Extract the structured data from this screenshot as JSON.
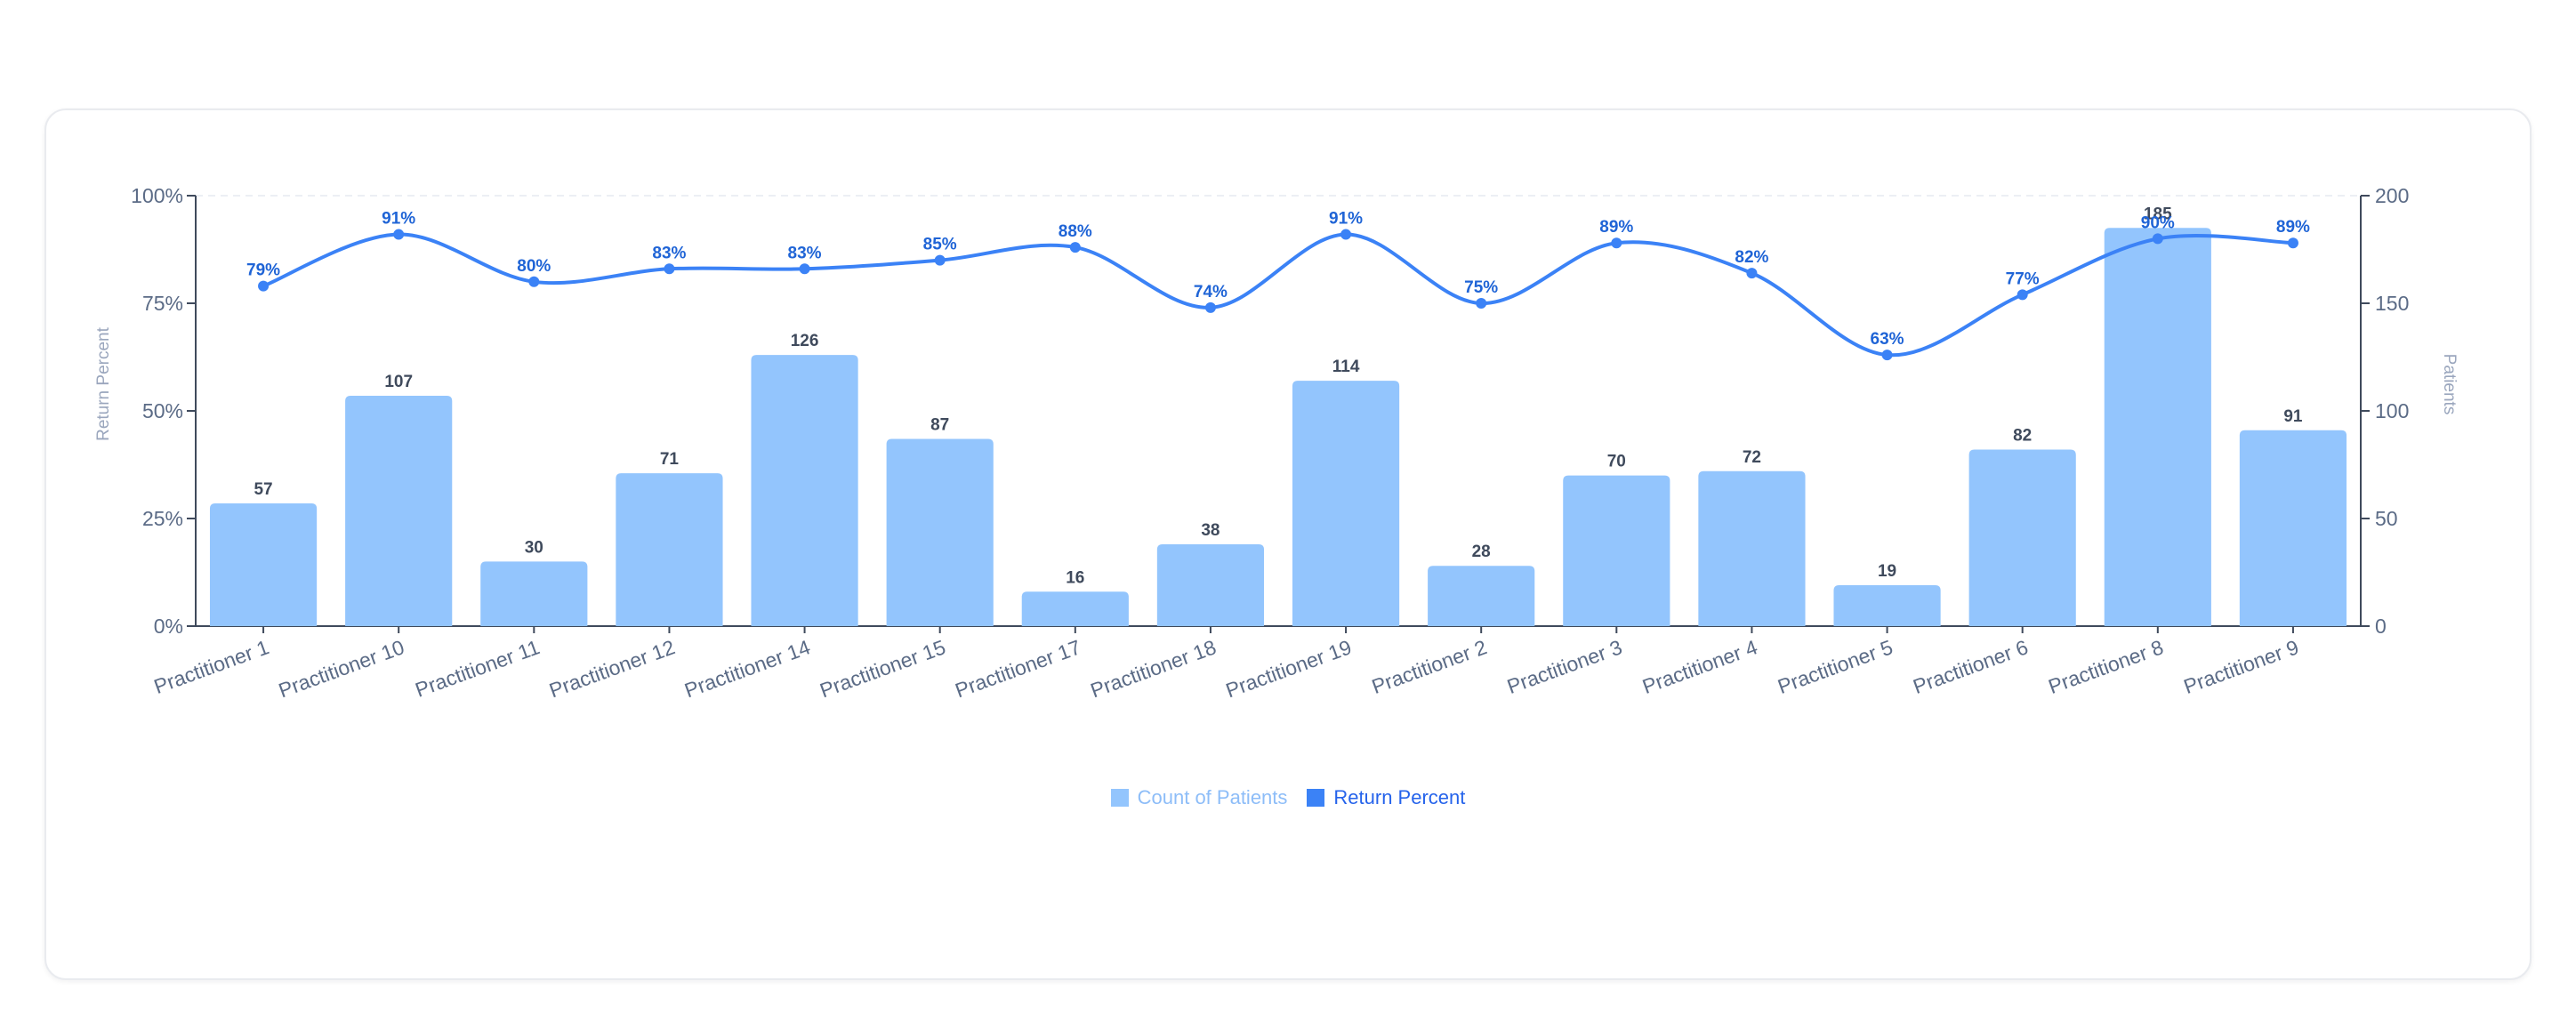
{
  "colors": {
    "bar": "#93c5fd",
    "line": "#3b82f6",
    "bar_legend_text": "#8dbdf8",
    "line_legend_text": "#2563eb"
  },
  "chart_data": {
    "type": "bar",
    "categories": [
      "Practitioner 1",
      "Practitioner 10",
      "Practitioner 11",
      "Practitioner 12",
      "Practitioner 14",
      "Practitioner 15",
      "Practitioner 17",
      "Practitioner 18",
      "Practitioner 19",
      "Practitioner 2",
      "Practitioner 3",
      "Practitioner 4",
      "Practitioner 5",
      "Practitioner 6",
      "Practitioner 8",
      "Practitioner 9"
    ],
    "series": [
      {
        "name": "Count of Patients",
        "type": "bar",
        "axis": "right",
        "values": [
          57,
          107,
          30,
          71,
          126,
          87,
          16,
          38,
          114,
          28,
          70,
          72,
          19,
          82,
          185,
          91
        ]
      },
      {
        "name": "Return Percent",
        "type": "line",
        "axis": "left",
        "values": [
          79,
          91,
          80,
          83,
          83,
          85,
          88,
          74,
          91,
          75,
          89,
          82,
          63,
          77,
          90,
          89
        ]
      }
    ],
    "y_left": {
      "label": "Return Percent",
      "ylim": [
        0,
        100
      ],
      "ticks": [
        "0%",
        "25%",
        "50%",
        "75%",
        "100%"
      ]
    },
    "y_right": {
      "label": "Patients",
      "ylim": [
        0,
        200
      ],
      "ticks": [
        "0",
        "50",
        "100",
        "150",
        "200"
      ]
    },
    "xlabel": "",
    "grid": false,
    "legend_position": "bottom-center"
  }
}
